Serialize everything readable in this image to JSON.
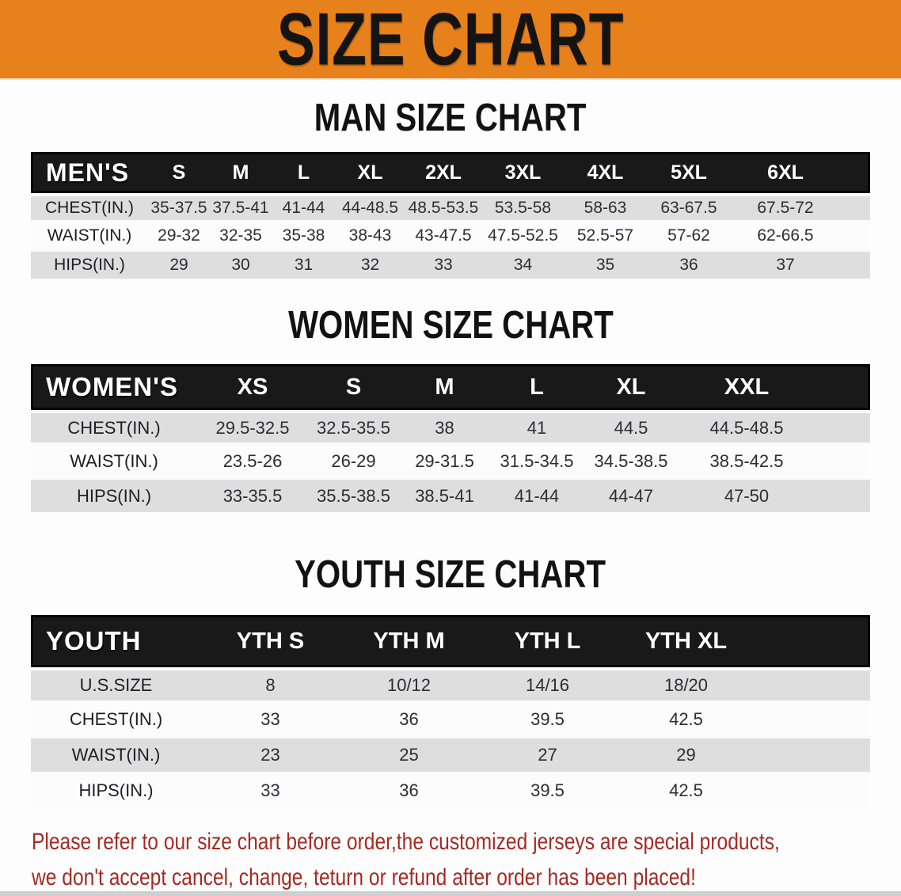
{
  "banner": {
    "title": "SIZE CHART",
    "bg_color": "#E7811B"
  },
  "sections": [
    {
      "name": "man",
      "heading": "MAN SIZE CHART",
      "table": {
        "corner": "MEN'S",
        "sizes": [
          "S",
          "M",
          "L",
          "XL",
          "2XL",
          "3XL",
          "4XL",
          "5XL",
          "6XL"
        ],
        "rows": [
          {
            "label": "CHEST(IN.)",
            "values": [
              "35-37.5",
              "37.5-41",
              "41-44",
              "44-48.5",
              "48.5-53.5",
              "53.5-58",
              "58-63",
              "63-67.5",
              "67.5-72"
            ]
          },
          {
            "label": "WAIST(IN.)",
            "values": [
              "29-32",
              "32-35",
              "35-38",
              "38-43",
              "43-47.5",
              "47.5-52.5",
              "52.5-57",
              "57-62",
              "62-66.5"
            ]
          },
          {
            "label": "HIPS(IN.)",
            "values": [
              "29",
              "30",
              "31",
              "32",
              "33",
              "34",
              "35",
              "36",
              "37"
            ]
          }
        ]
      }
    },
    {
      "name": "women",
      "heading": "WOMEN SIZE CHART",
      "table": {
        "corner": "WOMEN'S",
        "sizes": [
          "XS",
          "S",
          "M",
          "L",
          "XL",
          "XXL"
        ],
        "rows": [
          {
            "label": "CHEST(IN.)",
            "values": [
              "29.5-32.5",
              "32.5-35.5",
              "38",
              "41",
              "44.5",
              "44.5-48.5"
            ]
          },
          {
            "label": "WAIST(IN.)",
            "values": [
              "23.5-26",
              "26-29",
              "29-31.5",
              "31.5-34.5",
              "34.5-38.5",
              "38.5-42.5"
            ]
          },
          {
            "label": "HIPS(IN.)",
            "values": [
              "33-35.5",
              "35.5-38.5",
              "38.5-41",
              "41-44",
              "44-47",
              "47-50"
            ]
          }
        ]
      }
    },
    {
      "name": "youth",
      "heading": "YOUTH SIZE CHART",
      "table": {
        "corner": "YOUTH",
        "sizes": [
          "YTH S",
          "YTH M",
          "YTH L",
          "YTH XL"
        ],
        "rows": [
          {
            "label": "U.S.SIZE",
            "values": [
              "8",
              "10/12",
              "14/16",
              "18/20"
            ]
          },
          {
            "label": "CHEST(IN.)",
            "values": [
              "33",
              "36",
              "39.5",
              "42.5"
            ]
          },
          {
            "label": "WAIST(IN.)",
            "values": [
              "23",
              "25",
              "27",
              "29"
            ]
          },
          {
            "label": "HIPS(IN.)",
            "values": [
              "33",
              "36",
              "39.5",
              "42.5"
            ]
          }
        ]
      }
    }
  ],
  "disclaimer": {
    "lines": [
      "Please refer to our size chart before order,the customized jerseys are special products,",
      "we don't accept cancel, change, teturn or refund after order has been placed!"
    ],
    "color": "#A52A23"
  },
  "colors": {
    "banner_orange": "#E7811B",
    "header_bar": "#191919",
    "stripe_gray": "#DEDEDE",
    "value_text": "#2D2D32"
  }
}
